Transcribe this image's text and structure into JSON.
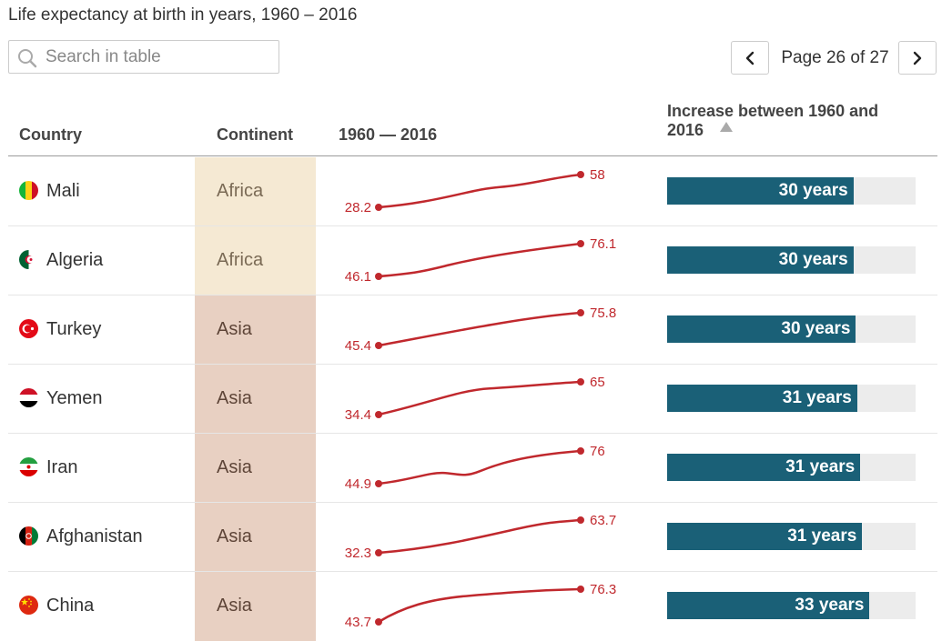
{
  "title": "Life expectancy at birth in years, 1960 – 2016",
  "search": {
    "placeholder": "Search in table",
    "value": ""
  },
  "pagination": {
    "label": "Page 26 of 27",
    "current": 26,
    "total": 27
  },
  "columns": {
    "country": "Country",
    "continent": "Continent",
    "trend": "1960 — 2016",
    "increase_line1": "Increase between 1960 and",
    "increase_line2": "2016"
  },
  "colors": {
    "bar": "#1a6077",
    "bar_track": "#ececec",
    "line": "#c0282d",
    "africa": "#f5e9d3",
    "asia": "#e8d0c2",
    "africa_text": "#7a6a55",
    "asia_text": "#5e4538"
  },
  "bar_max_years": 40,
  "rows": [
    {
      "country": "Mali",
      "flag": "mali-flag-icon",
      "continent": "Africa",
      "v1960": "28.2",
      "v2016": "58",
      "increase": 30,
      "increase_label": "30 years",
      "curve": "s"
    },
    {
      "country": "Algeria",
      "flag": "algeria-flag-icon",
      "continent": "Africa",
      "v1960": "46.1",
      "v2016": "76.1",
      "increase": 30,
      "increase_label": "30 years",
      "curve": "step"
    },
    {
      "country": "Turkey",
      "flag": "turkey-flag-icon",
      "continent": "Asia",
      "v1960": "45.4",
      "v2016": "75.8",
      "increase": 30.4,
      "increase_label": "30 years",
      "curve": "smooth"
    },
    {
      "country": "Yemen",
      "flag": "yemen-flag-icon",
      "continent": "Asia",
      "v1960": "34.4",
      "v2016": "65",
      "increase": 30.6,
      "increase_label": "31 years",
      "curve": "concave"
    },
    {
      "country": "Iran",
      "flag": "iran-flag-icon",
      "continent": "Asia",
      "v1960": "44.9",
      "v2016": "76",
      "increase": 31.1,
      "increase_label": "31 years",
      "curve": "dip"
    },
    {
      "country": "Afghanistan",
      "flag": "afghanistan-flag-icon",
      "continent": "Asia",
      "v1960": "32.3",
      "v2016": "63.7",
      "increase": 31.4,
      "increase_label": "31 years",
      "curve": "convex"
    },
    {
      "country": "China",
      "flag": "china-flag-icon",
      "continent": "Asia",
      "v1960": "43.7",
      "v2016": "76.3",
      "increase": 32.6,
      "increase_label": "33 years",
      "curve": "jump"
    }
  ]
}
